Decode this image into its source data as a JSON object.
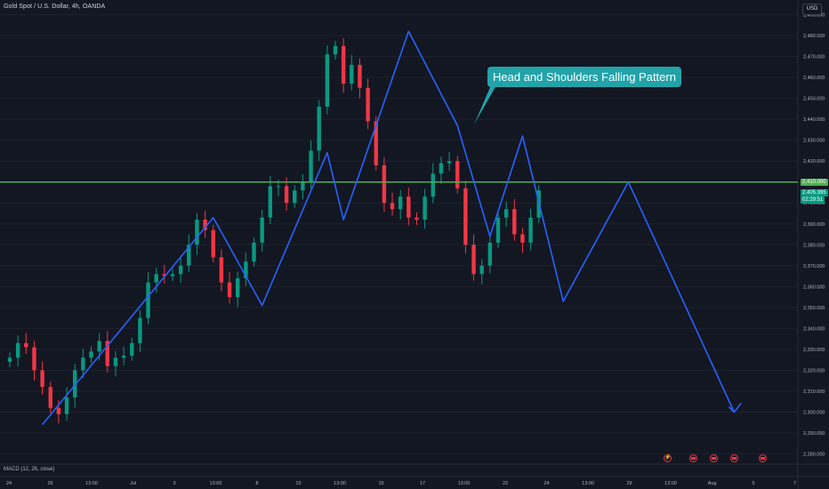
{
  "header": {
    "symbol_title": "Gold Spot / U.S. Dollar, 4h, OANDA"
  },
  "toolbar": {
    "currency": "USD"
  },
  "annotation": {
    "text": "Head and Shoulders Falling Pattern"
  },
  "indicator": {
    "label": "MACD (12, 26, close)"
  },
  "price_tags": {
    "level": "2,410.000",
    "last_price": "2,405.395",
    "countdown": "02:29:51"
  },
  "colors": {
    "background": "#131722",
    "up_candle": "#089981",
    "down_candle": "#f23645",
    "pattern_line": "#2962ff",
    "level_line": "#4caf50",
    "annotation_bg": "#22a3a8"
  },
  "chart_data": {
    "type": "candlestick",
    "x_axis_labels": [
      "24",
      "26",
      "13:00",
      "Jul",
      "3",
      "13:00",
      "8",
      "10",
      "13:00",
      "15",
      "17",
      "13:00",
      "22",
      "24",
      "13:00",
      "29",
      "13:00",
      "Aug",
      "5",
      "7"
    ],
    "y_axis_ticks": [
      2280,
      2290,
      2300,
      2310,
      2320,
      2330,
      2340,
      2350,
      2360,
      2370,
      2380,
      2390,
      2400,
      2410,
      2420,
      2430,
      2440,
      2450,
      2460,
      2470,
      2480,
      2490
    ],
    "y_axis_labels": [
      "2,280.000",
      "2,290.000",
      "2,300.000",
      "2,310.000",
      "2,320.000",
      "2,330.000",
      "2,340.000",
      "2,350.000",
      "2,360.000",
      "2,370.000",
      "2,380.000",
      "2,390.000",
      "2,400.000",
      "2,410.000",
      "2,420.000",
      "2,430.000",
      "2,440.000",
      "2,450.000",
      "2,460.000",
      "2,470.000",
      "2,480.000",
      "2,490.000"
    ],
    "ylim": [
      2276,
      2497
    ],
    "horizontal_level": 2410,
    "last_price": 2405.395,
    "close_path": [
      2326,
      2333,
      2331,
      2320,
      2312,
      2302,
      2299,
      2307,
      2320,
      2326,
      2329,
      2334,
      2322,
      2326,
      2327,
      2333,
      2345,
      2362,
      2366,
      2365,
      2366,
      2370,
      2380,
      2392,
      2387,
      2374,
      2362,
      2355,
      2364,
      2372,
      2381,
      2393,
      2408,
      2408,
      2400,
      2406,
      2410,
      2425,
      2446,
      2471,
      2475,
      2457,
      2466,
      2455,
      2439,
      2418,
      2400,
      2397,
      2403,
      2393,
      2392,
      2403,
      2414,
      2419,
      2420,
      2407,
      2380,
      2366,
      2370,
      2381,
      2393,
      2397,
      2385,
      2381,
      2393,
      2406
    ],
    "pattern_zigzag": [
      {
        "x_index": 4,
        "y": 2294
      },
      {
        "x_index": 25,
        "y": 2393
      },
      {
        "x_index": 31,
        "y": 2351
      },
      {
        "x_index": 39,
        "y": 2424
      },
      {
        "x_index": 41,
        "y": 2392
      },
      {
        "x_index": 49,
        "y": 2482
      },
      {
        "x_index": 55,
        "y": 2437
      },
      {
        "x_index": 59,
        "y": 2384
      },
      {
        "x_index": 63,
        "y": 2432
      },
      {
        "x_index": 68,
        "y": 2353
      },
      {
        "x_index": 76,
        "y": 2410
      },
      {
        "x_index": 89,
        "y": 2300
      }
    ],
    "event_markers": [
      {
        "type": "bolt",
        "x_label_index": 16
      },
      {
        "type": "flag",
        "x_label_index": 16
      },
      {
        "type": "flag",
        "x_label_index": 17
      },
      {
        "type": "flag",
        "x_label_index": 17
      },
      {
        "type": "flag",
        "x_label_index": 18
      }
    ]
  }
}
